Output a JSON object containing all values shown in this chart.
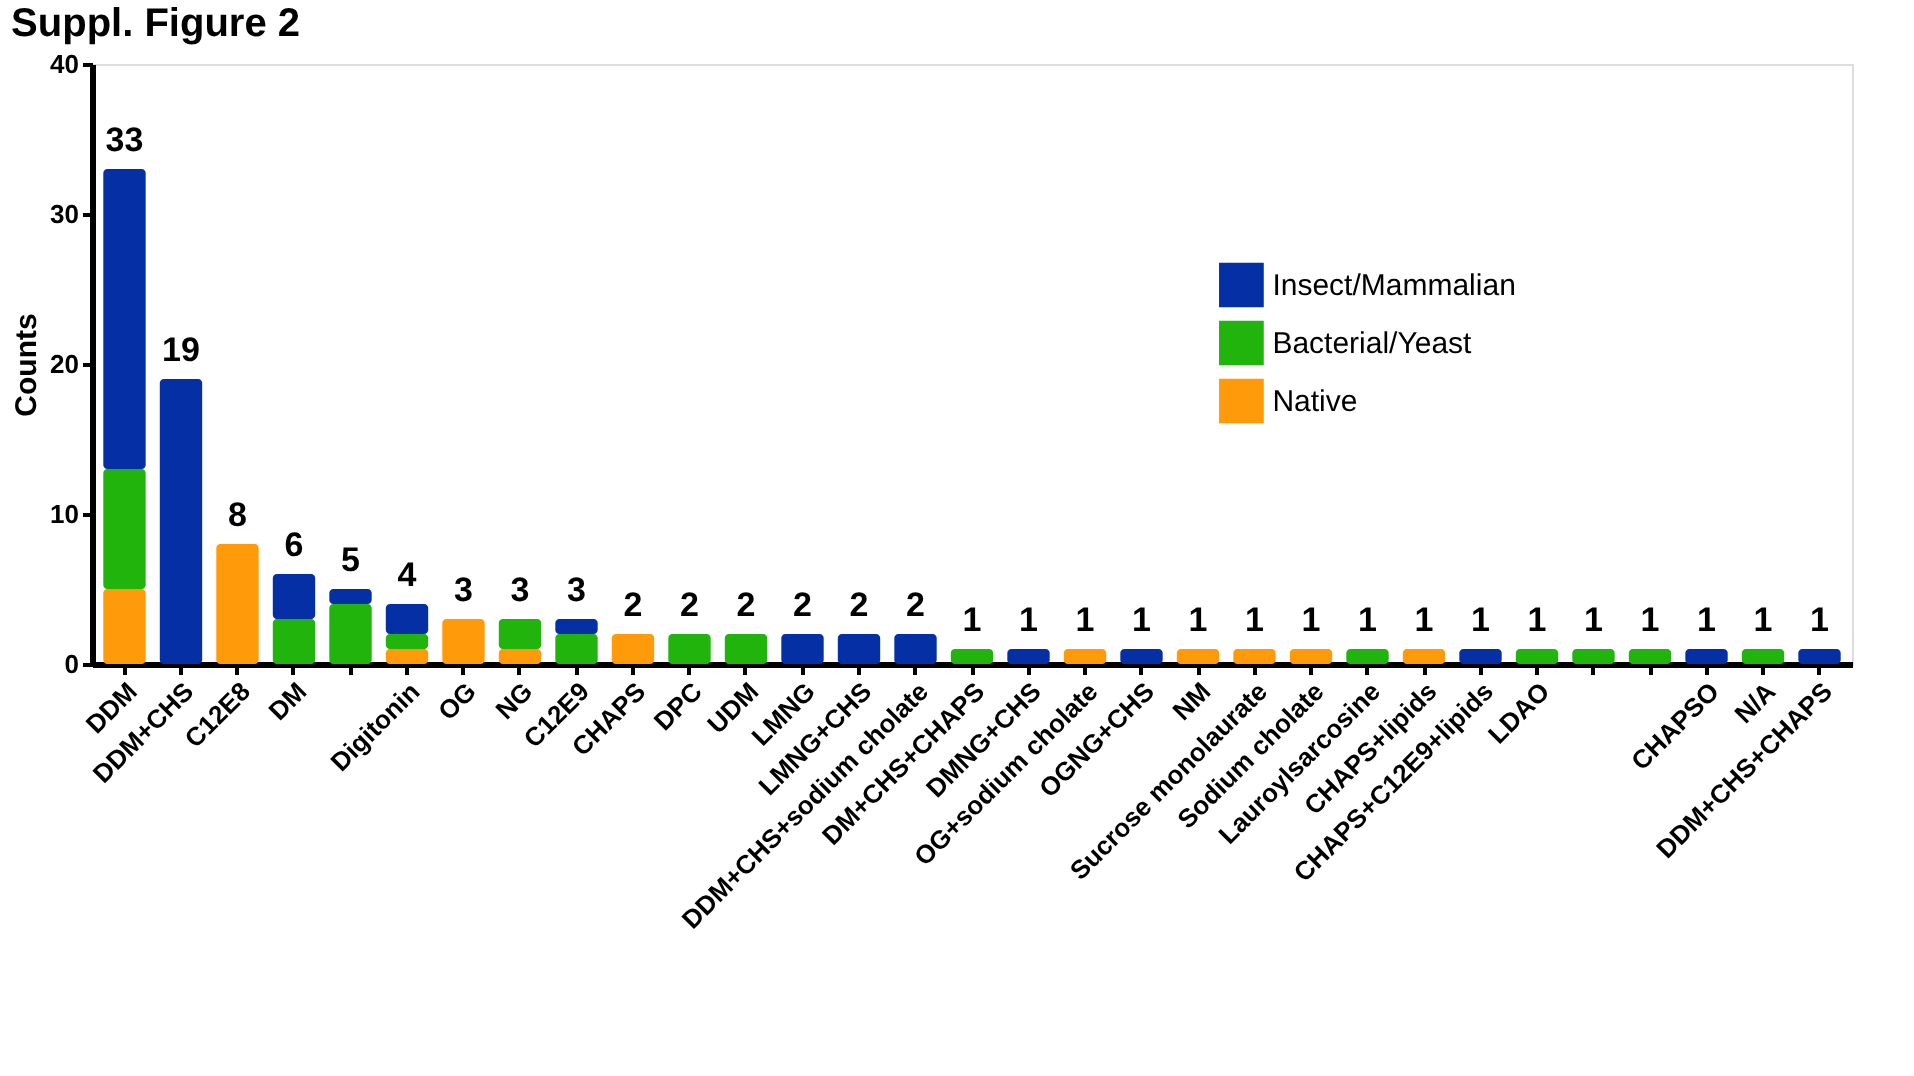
{
  "chart_data": {
    "type": "bar",
    "title": "Suppl. Figure 2",
    "ylabel": "Counts",
    "categories": [
      "DDM",
      "DDM+CHS",
      "C12E8",
      "DM",
      null,
      "Digitonin",
      "OG",
      "NG",
      "C12E9",
      "CHAPS",
      "DPC",
      "UDM",
      "LMNG",
      "LMNG+CHS",
      "DDM+CHS+sodium cholate",
      "DM+CHS+CHAPS",
      "DMNG+CHS",
      "OG+sodium cholate",
      "OGNG+CHS",
      "NM",
      "Sucrose monolaurate",
      "Sodium cholate",
      "Lauroylsarcosine",
      "CHAPS+lipids",
      "CHAPS+C12E9+lipids",
      "LDAO",
      null,
      null,
      "CHAPSO",
      "N/A",
      "DDM+CHS+CHAPS"
    ],
    "stacked": true,
    "series": [
      {
        "name": "Native",
        "color": "#ff9a0a",
        "values": [
          5,
          null,
          8,
          null,
          null,
          1,
          3,
          1,
          null,
          2,
          null,
          null,
          null,
          null,
          null,
          null,
          null,
          1,
          null,
          1,
          1,
          1,
          null,
          1,
          null,
          null,
          null,
          null,
          null,
          null,
          null
        ]
      },
      {
        "name": "Bacterial/Yeast",
        "color": "#20b40c",
        "values": [
          8,
          null,
          null,
          3,
          4,
          1,
          null,
          2,
          2,
          null,
          2,
          2,
          null,
          null,
          null,
          1,
          null,
          null,
          null,
          null,
          null,
          null,
          1,
          null,
          null,
          1,
          1,
          1,
          null,
          1,
          null
        ]
      },
      {
        "name": "Insect/Mammalian",
        "color": "#0530a5",
        "values": [
          20,
          19,
          null,
          3,
          1,
          2,
          null,
          null,
          1,
          null,
          null,
          null,
          2,
          2,
          2,
          null,
          1,
          null,
          1,
          null,
          null,
          null,
          null,
          null,
          1,
          null,
          null,
          null,
          1,
          null,
          1
        ]
      }
    ],
    "totals": [
      "33",
      "19",
      "8",
      "6",
      "5",
      "4",
      "3",
      "3",
      "3",
      "2",
      "2",
      "2",
      "2",
      "2",
      "2",
      "1",
      "1",
      "1",
      "1",
      "1",
      "1",
      "1",
      "1",
      "1",
      "1",
      "1",
      "1",
      "1",
      "1",
      "1",
      "1"
    ],
    "ylim": [
      0,
      40
    ],
    "yticks": [
      0,
      10,
      20,
      30,
      40
    ],
    "grid": false,
    "legend": "right"
  }
}
